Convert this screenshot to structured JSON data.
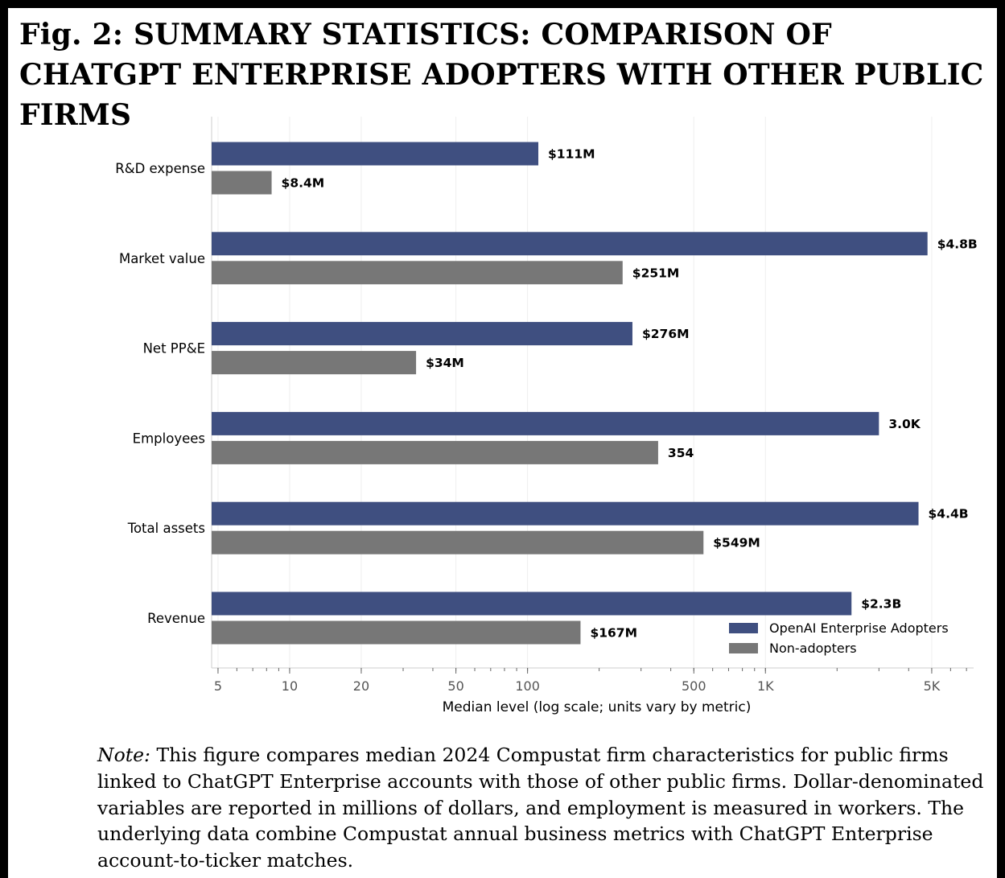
{
  "title": "Fig. 2: SUMMARY STATISTICS: COMPARISON OF CHATGPT ENTERPRISE ADOPTERS WITH OTHER PUBLIC FIRMS",
  "note": {
    "label": "Note:",
    "text": "This figure compares median 2024 Compustat firm characteristics for public firms linked to ChatGPT Enterprise accounts with those of other public firms. Dollar-denominated variables are reported in millions of dollars, and employment is measured in workers. The underlying data combine Compustat annual business metrics with ChatGPT Enterprise account-to-ticker matches."
  },
  "colors": {
    "adopters": "#3f4f80",
    "non_adopters": "#777777",
    "grid": "#eeeeee",
    "axis": "#cccccc"
  },
  "chart_data": {
    "type": "bar",
    "orientation": "horizontal",
    "categories": [
      "R&D expense",
      "Market value",
      "Net PP&E",
      "Employees",
      "Total assets",
      "Revenue"
    ],
    "series": [
      {
        "name": "OpenAI Enterprise Adopters",
        "values": [
          111,
          4800,
          276,
          3000,
          4400,
          2300
        ],
        "labels": [
          "$111M",
          "$4.8B",
          "$276M",
          "3.0K",
          "$4.4B",
          "$2.3B"
        ]
      },
      {
        "name": "Non-adopters",
        "values": [
          8.4,
          251,
          34,
          354,
          549,
          167
        ],
        "labels": [
          "$8.4M",
          "$251M",
          "$34M",
          "354",
          "$549M",
          "$167M"
        ]
      }
    ],
    "x_scale": "log",
    "xlim": [
      4.7,
      7500
    ],
    "xticks": [
      5,
      10,
      20,
      50,
      100,
      500,
      1000,
      5000
    ],
    "xtick_labels": [
      "5",
      "10",
      "20",
      "50",
      "100",
      "500",
      "1K",
      "5K"
    ],
    "xlabel": "Median level (log scale; units vary by metric)",
    "grid": "vertical",
    "legend_position": "lower-right"
  }
}
